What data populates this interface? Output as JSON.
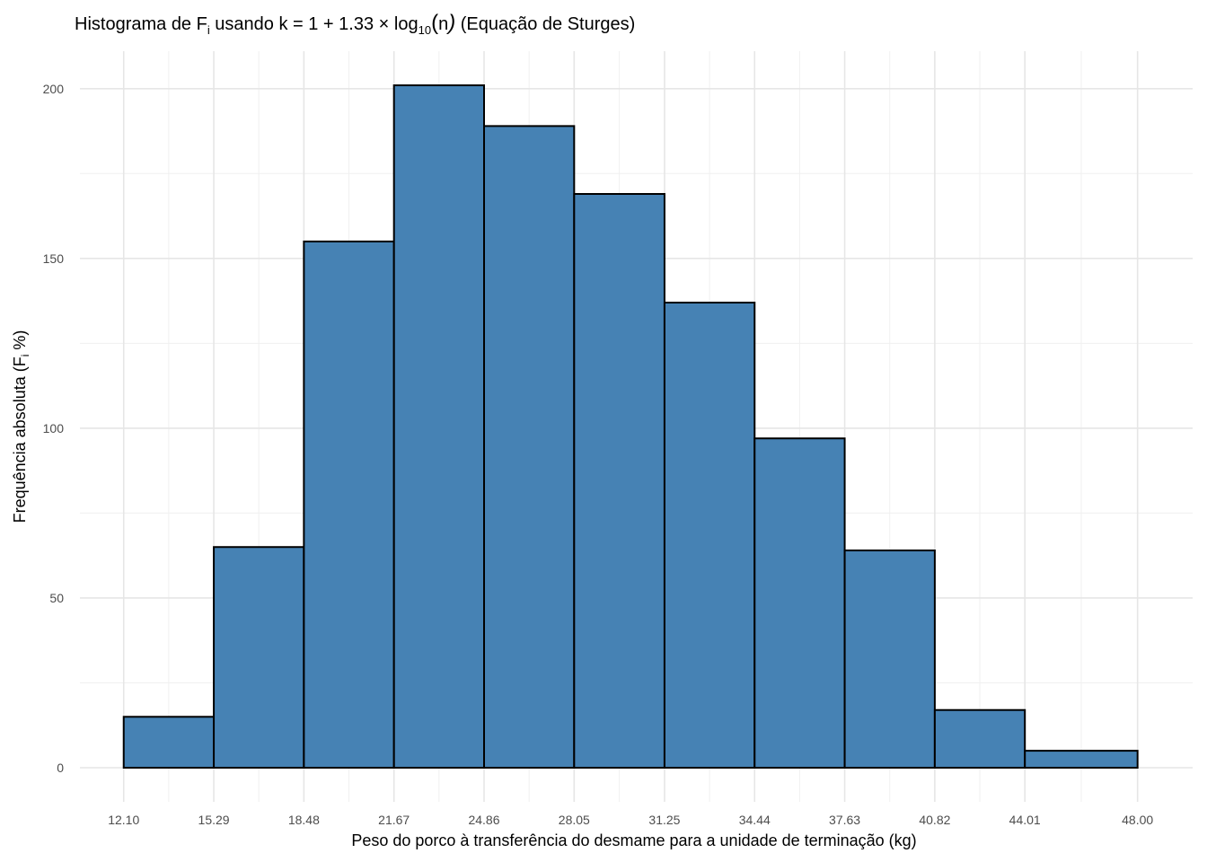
{
  "chart_data": {
    "type": "bar",
    "subtype": "histogram",
    "title_parts": {
      "prefix": "Histograma de ",
      "f_symbol": "F",
      "f_subscript": "i",
      "mid": " usando k = 1 + 1.33 × log",
      "log_base": "10",
      "paren_open": "(",
      "n": "n",
      "paren_close": ")",
      "suffix": " (Equação de Sturges)"
    },
    "xlabel": "Peso do porco à transferência do desmame para a unidade de terminação (kg)",
    "ylabel_parts": {
      "prefix": "Frequência absoluta (",
      "f_symbol": "F",
      "f_subscript": "i",
      "suffix": " %)"
    },
    "bin_edges": [
      12.1,
      15.29,
      18.48,
      21.67,
      24.86,
      28.05,
      31.25,
      34.44,
      37.63,
      40.82,
      44.01,
      48.0
    ],
    "x_tick_labels": [
      "12.10",
      "15.29",
      "18.48",
      "21.67",
      "24.86",
      "28.05",
      "31.25",
      "34.44",
      "37.63",
      "40.82",
      "44.01",
      "48.00"
    ],
    "values": [
      15,
      65,
      155,
      201,
      189,
      169,
      137,
      97,
      64,
      17,
      5
    ],
    "y_ticks": [
      0,
      50,
      100,
      150,
      200
    ],
    "y_tick_labels": [
      "0",
      "50",
      "100",
      "150",
      "200"
    ],
    "xlim": [
      10.55,
      49.95
    ],
    "ylim": [
      -10.05,
      211.05
    ],
    "grid": true,
    "legend": "none",
    "bar_fill": "#4682b4",
    "bar_stroke": "#000000",
    "grid_major_color": "#e6e6e6",
    "grid_minor_color": "#f0f0f0"
  }
}
